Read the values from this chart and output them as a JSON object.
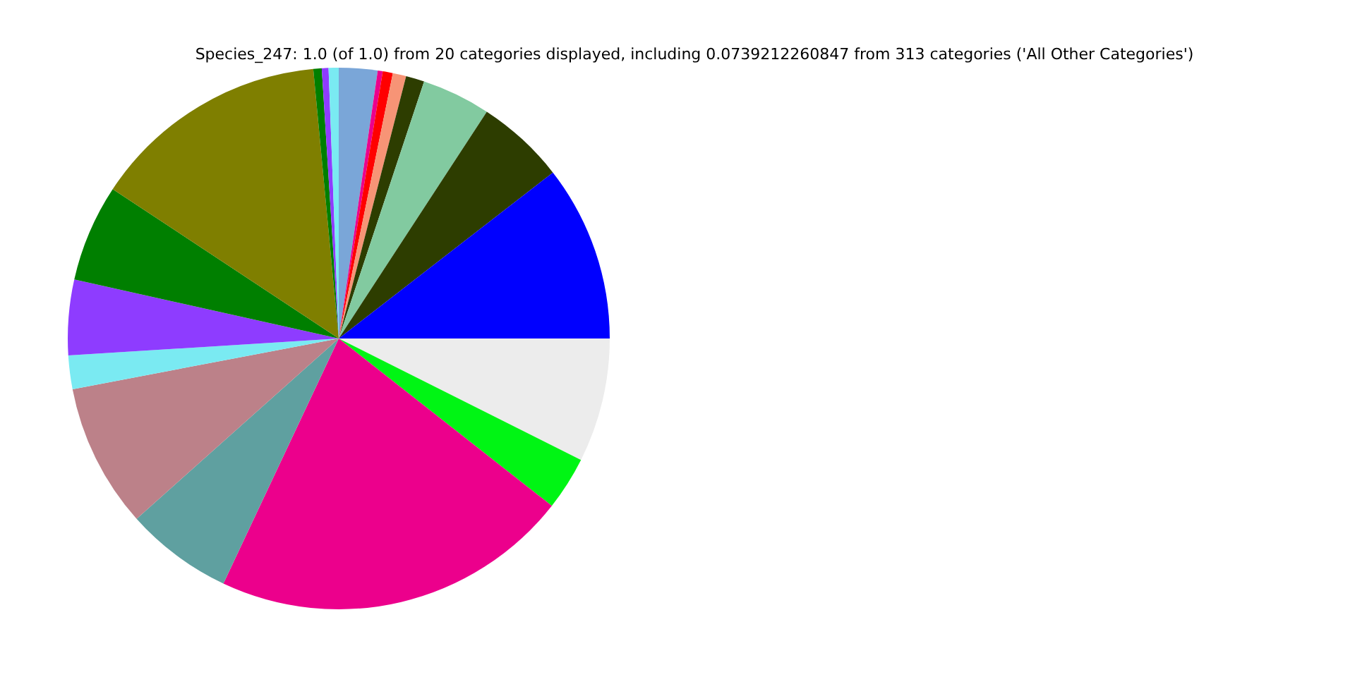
{
  "chart_data": {
    "type": "pie",
    "title": "Species_247: 1.0 (of 1.0) from 20 categories displayed, including 0.0739212260847 from 313 categories ('All Other Categories')",
    "categories": [
      null,
      null,
      null,
      null,
      null,
      null,
      null,
      null,
      null,
      null,
      null,
      null,
      null,
      null,
      null,
      null,
      null,
      null,
      null,
      null
    ],
    "values": [
      10.5,
      5.3,
      4.1,
      1.1,
      0.8,
      0.6,
      0.3,
      2.3,
      0.6,
      0.4,
      0.5,
      14.2,
      5.8,
      4.5,
      2.0,
      8.6,
      6.4,
      21.4,
      3.2,
      7.4
    ],
    "colors": [
      "#0000ff",
      "#2d3d00",
      "#82caa0",
      "#2d3d00",
      "#f79476",
      "#ff0000",
      "#ec008c",
      "#7aa6d8",
      "#7aeaf2",
      "#8e3cff",
      "#007f00",
      "#7f7f00",
      "#007f00",
      "#8e3cff",
      "#7aeaf2",
      "#bc8189",
      "#5fa0a0",
      "#ec008c",
      "#00f514",
      "#ececec"
    ],
    "legend": false
  }
}
